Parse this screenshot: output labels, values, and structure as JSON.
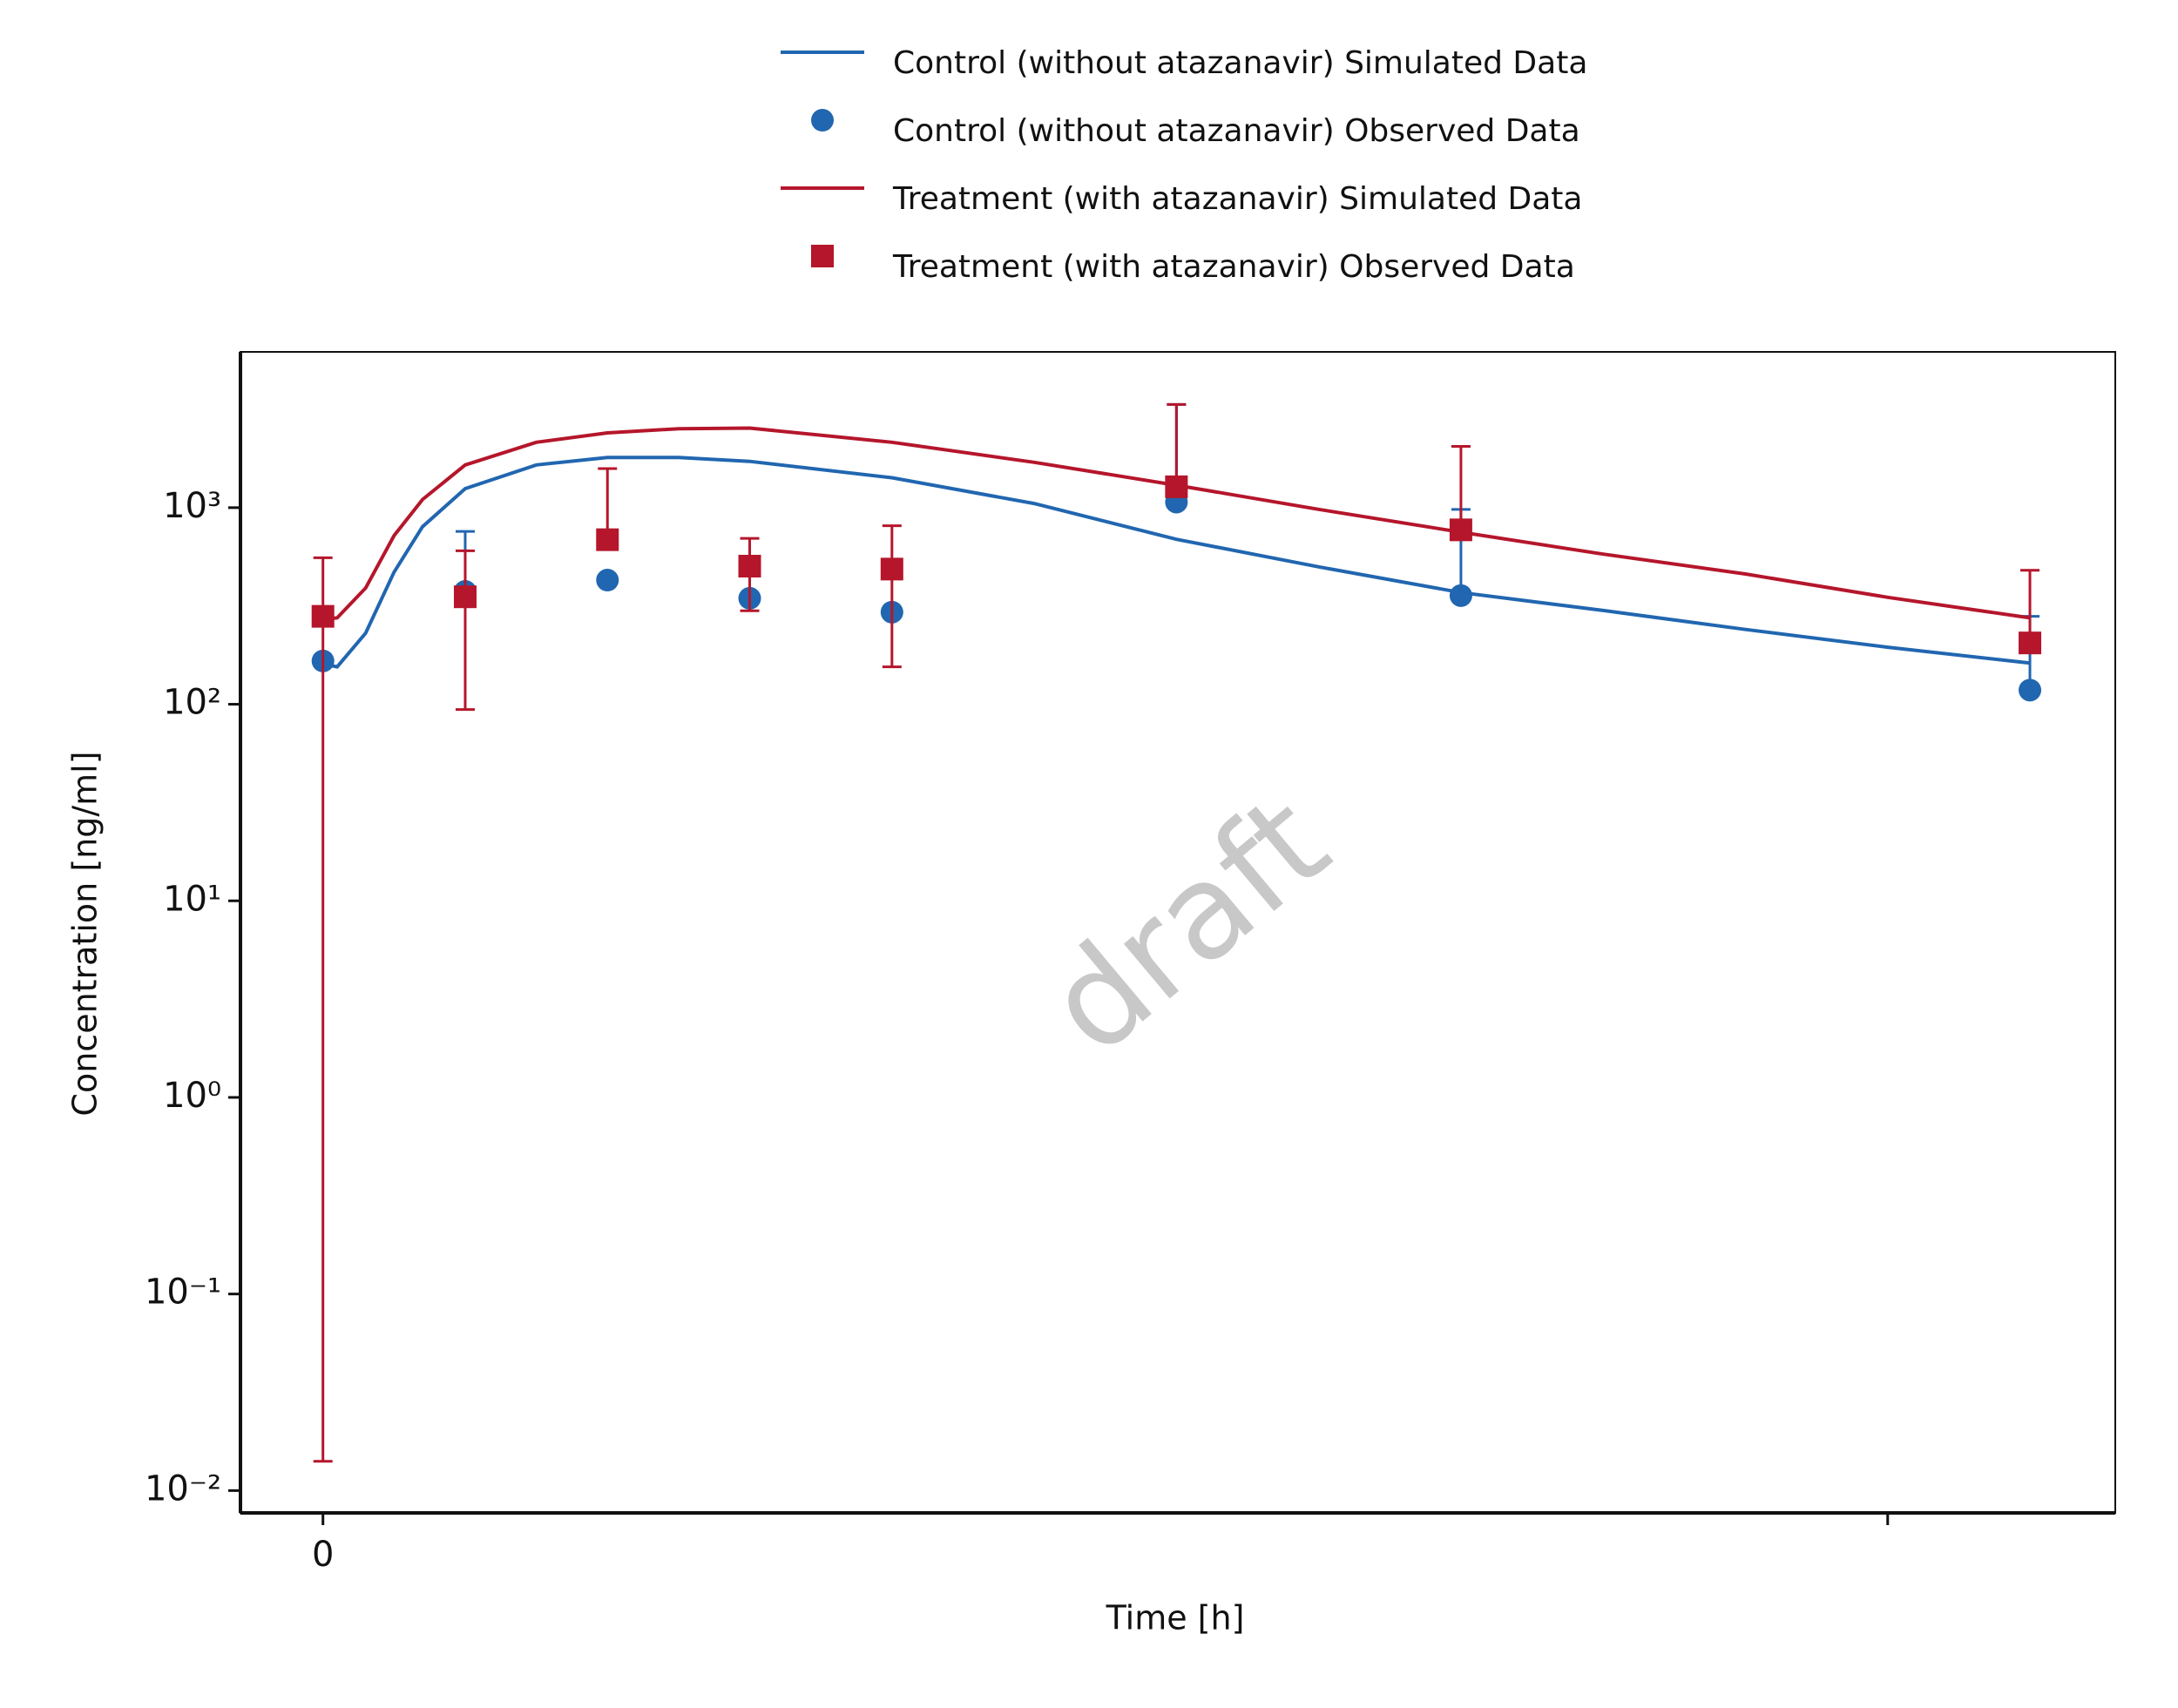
{
  "chart_data": {
    "type": "line",
    "x_label": "Time [h]",
    "y_label": "Concentration [ng/ml]",
    "watermark": "draft",
    "log_y": true,
    "legend": "top",
    "xlim": [
      -0.29,
      6.3
    ],
    "xticks": [
      0,
      {
        "value": 5.5,
        "label": null
      }
    ],
    "ylim": [
      0.0077,
      6200
    ],
    "yticks": [
      {
        "value": 0.01,
        "label": "10⁻²"
      },
      {
        "value": 0.1,
        "label": "10⁻¹"
      },
      {
        "value": 1,
        "label": "10⁰"
      },
      {
        "value": 10,
        "label": "10¹"
      },
      {
        "value": 100,
        "label": "10²"
      },
      {
        "value": 1000,
        "label": "10³"
      }
    ],
    "series": [
      {
        "name": "Control (without atazanavir) Simulated Data",
        "color": "#2166b0",
        "kind": "line",
        "x": [
          0,
          0.05,
          0.15,
          0.25,
          0.35,
          0.5,
          0.75,
          1,
          1.25,
          1.5,
          2,
          2.5,
          3,
          3.5,
          4,
          4.5,
          5,
          5.5,
          6
        ],
        "values": [
          160,
          155,
          230,
          470,
          800,
          1250,
          1650,
          1800,
          1800,
          1720,
          1420,
          1050,
          690,
          500,
          370,
          300,
          240,
          195,
          162
        ]
      },
      {
        "name": "Control (without atazanavir) Observed Data",
        "color": "#2166b0",
        "kind": "circle",
        "x": [
          0,
          0.5,
          1,
          1.5,
          2,
          3,
          4,
          6
        ],
        "values": [
          166,
          375,
          428,
          346,
          294,
          1067,
          357,
          118
        ],
        "upper": [
          null,
          757,
          null,
          null,
          null,
          3350,
          980,
          280
        ],
        "lower": [
          null,
          null,
          null,
          null,
          null,
          null,
          null,
          null
        ]
      },
      {
        "name": "Treatment (with atazanavir) Simulated Data",
        "color": "#b5162b",
        "kind": "line",
        "x": [
          0,
          0.05,
          0.15,
          0.25,
          0.35,
          0.5,
          0.75,
          1,
          1.25,
          1.5,
          2,
          2.5,
          3,
          3.5,
          4,
          4.5,
          5,
          5.5,
          6
        ],
        "values": [
          270,
          275,
          390,
          720,
          1100,
          1650,
          2150,
          2400,
          2520,
          2540,
          2150,
          1700,
          1300,
          980,
          750,
          580,
          460,
          350,
          275
        ]
      },
      {
        "name": "Treatment (with atazanavir) Observed Data",
        "color": "#b5162b",
        "kind": "square",
        "x": [
          0,
          0.5,
          1,
          1.5,
          2,
          3,
          4,
          6
        ],
        "values": [
          280,
          352,
          687,
          504,
          487,
          1277,
          771,
          205
        ],
        "upper": [
          556,
          603,
          1580,
          698,
          809,
          3350,
          2050,
          480
        ],
        "lower": [
          0.0141,
          94,
          null,
          299,
          155,
          null,
          null,
          null
        ]
      }
    ]
  }
}
